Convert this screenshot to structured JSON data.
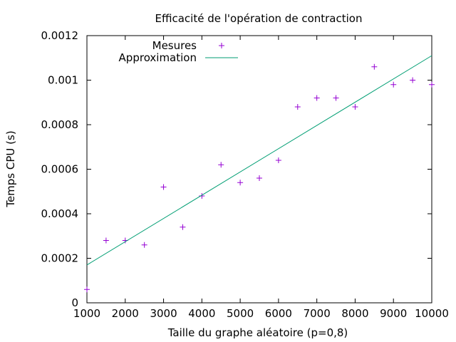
{
  "chart_data": {
    "type": "scatter",
    "title": "Efficacité de l'opération de contraction",
    "xlabel": "Taille du graphe aléatoire (p=0,8)",
    "ylabel": "Temps CPU (s)",
    "xlim": [
      1000,
      10000
    ],
    "ylim": [
      0,
      0.0012
    ],
    "x_ticks": [
      1000,
      2000,
      3000,
      4000,
      5000,
      6000,
      7000,
      8000,
      9000,
      10000
    ],
    "x_tick_labels": [
      "1000",
      "2000",
      "3000",
      "4000",
      "5000",
      "6000",
      "7000",
      "8000",
      "9000",
      "10000"
    ],
    "y_ticks": [
      0,
      0.0002,
      0.0004,
      0.0006,
      0.0008,
      0.001,
      0.0012
    ],
    "y_tick_labels": [
      "0",
      "0.0002",
      "0.0004",
      "0.0006",
      "0.0008",
      "0.001",
      "0.0012"
    ],
    "grid": false,
    "legend_position": "top-left",
    "series": [
      {
        "name": "Mesures",
        "kind": "points",
        "marker": "plus",
        "color": "#9400d3",
        "points": [
          [
            1000,
            6e-05
          ],
          [
            1500,
            0.00028
          ],
          [
            2000,
            0.00028
          ],
          [
            2500,
            0.00026
          ],
          [
            3000,
            0.00052
          ],
          [
            3500,
            0.00034
          ],
          [
            4000,
            0.00048
          ],
          [
            4500,
            0.00062
          ],
          [
            5000,
            0.00054
          ],
          [
            5500,
            0.00056
          ],
          [
            6000,
            0.00064
          ],
          [
            6500,
            0.00088
          ],
          [
            7000,
            0.00092
          ],
          [
            7500,
            0.00092
          ],
          [
            8000,
            0.00088
          ],
          [
            8500,
            0.00106
          ],
          [
            9000,
            0.00098
          ],
          [
            9500,
            0.001
          ],
          [
            10000,
            0.00098
          ]
        ]
      },
      {
        "name": "Approximation",
        "kind": "line",
        "color": "#009e73",
        "points": [
          [
            1000,
            0.00017
          ],
          [
            10000,
            0.00111
          ]
        ]
      }
    ]
  }
}
